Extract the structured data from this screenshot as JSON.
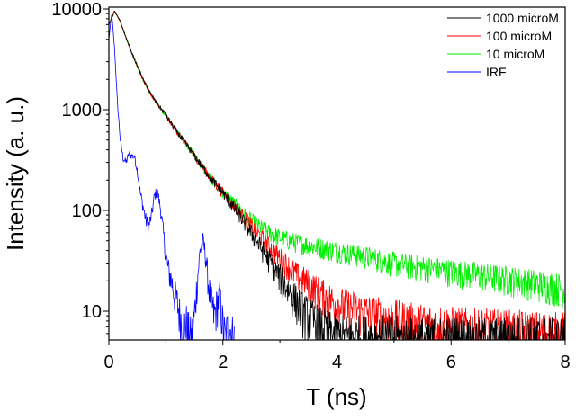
{
  "chart_data": {
    "type": "line",
    "title": "",
    "xlabel": "T (ns)",
    "ylabel": "Intensity (a. u.)",
    "xlim": [
      0,
      8
    ],
    "ylim": [
      5.2,
      10500
    ],
    "yscale": "log",
    "grid": false,
    "legend_position": "top-right",
    "xticks": [
      "0",
      "2",
      "4",
      "6",
      "8"
    ],
    "yticks": [
      "10",
      "100",
      "1000",
      "10000"
    ],
    "x": [
      0,
      0.1,
      0.2,
      0.3,
      0.4,
      0.5,
      0.6,
      0.7,
      0.8,
      0.9,
      1.0,
      1.1,
      1.2,
      1.3,
      1.4,
      1.5,
      1.6,
      1.7,
      1.8,
      1.9,
      2.0,
      2.1,
      2.2,
      2.3,
      2.4,
      2.5,
      2.6,
      2.7,
      2.8,
      2.9,
      3.0,
      3.1,
      3.2,
      3.3,
      3.4,
      3.5,
      3.6,
      3.7,
      3.8,
      3.9,
      4.0,
      4.1,
      4.2,
      4.3,
      4.4,
      4.5,
      4.6,
      4.7,
      4.8,
      4.9,
      5.0,
      5.1,
      5.2,
      5.3,
      5.4,
      5.5,
      5.6,
      5.7,
      5.8,
      5.9,
      6.0,
      6.1,
      6.2,
      6.3,
      6.4,
      6.5,
      6.6,
      6.7,
      6.8,
      6.9,
      7.0,
      7.1,
      7.2,
      7.3,
      7.4,
      7.5,
      7.6,
      7.7,
      7.8,
      7.9,
      8.0
    ],
    "series": [
      {
        "name": "1000 microM",
        "color": "#000000",
        "values": [
          7000,
          9500,
          7500,
          5200,
          3700,
          2700,
          2000,
          1550,
          1250,
          1050,
          880,
          720,
          600,
          500,
          420,
          350,
          290,
          245,
          205,
          175,
          150,
          125,
          105,
          88,
          72,
          60,
          49,
          40,
          33,
          27,
          22,
          18,
          15,
          12.5,
          10.5,
          9,
          8,
          7,
          6.5,
          6,
          5.5,
          5.5,
          5.5,
          5.5,
          5.5,
          5.5,
          5.5,
          5.5,
          5.5,
          5.5,
          5.5,
          5.2,
          5.2,
          5.2,
          5.2,
          5.2,
          5.2,
          5.2,
          5.2,
          5.2,
          5.2,
          5.2,
          5.2,
          5.2,
          5.2,
          5.2,
          5.2,
          5.2,
          5.2,
          5.2,
          5.2,
          5.2,
          5.2,
          5.2,
          5.2,
          5.2,
          5.2,
          5.2,
          5.2,
          5.2,
          5.2
        ]
      },
      {
        "name": "100 microM",
        "color": "#ff0000",
        "values": [
          7000,
          9500,
          7500,
          5200,
          3700,
          2700,
          2000,
          1550,
          1250,
          1050,
          880,
          720,
          600,
          500,
          420,
          350,
          290,
          245,
          205,
          175,
          150,
          130,
          112,
          96,
          82,
          70,
          60,
          52,
          45,
          39,
          34,
          30,
          26,
          23,
          21,
          19,
          17,
          15.5,
          14,
          13,
          12,
          11.5,
          11,
          10.6,
          10.2,
          9.8,
          9.5,
          9.2,
          8.9,
          8.6,
          8.4,
          8.2,
          8,
          7.8,
          7.6,
          7.5,
          7.4,
          7.3,
          7.2,
          7.1,
          7,
          6.9,
          6.8,
          6.8,
          6.7,
          6.6,
          6.6,
          6.5,
          6.5,
          6.4,
          6.4,
          6.3,
          6.3,
          6.2,
          6.2,
          6.1,
          6.1,
          6,
          6,
          6,
          6
        ]
      },
      {
        "name": "10 microM",
        "color": "#00ee00",
        "values": [
          7000,
          9500,
          7500,
          5200,
          3700,
          2700,
          2000,
          1550,
          1250,
          1050,
          880,
          720,
          600,
          500,
          420,
          350,
          290,
          245,
          205,
          175,
          150,
          135,
          118,
          103,
          90,
          80,
          72,
          66,
          61,
          57,
          54,
          52,
          50,
          48,
          47,
          45,
          44,
          43,
          42,
          41,
          40,
          39,
          38,
          37,
          36,
          35,
          34,
          33,
          32,
          31,
          30,
          29.5,
          29,
          28.5,
          28,
          27.5,
          27,
          26.5,
          26,
          25.5,
          25,
          24.6,
          24.2,
          23.8,
          23.4,
          23,
          22.6,
          22.2,
          21.8,
          21.4,
          21,
          20.6,
          20.2,
          19.8,
          19.4,
          19,
          18.6,
          18.2,
          17.8,
          17.4,
          17
        ]
      },
      {
        "name": "IRF",
        "color": "#0000ff",
        "x": [
          0,
          0.05,
          0.1,
          0.15,
          0.2,
          0.25,
          0.3,
          0.35,
          0.4,
          0.45,
          0.5,
          0.55,
          0.6,
          0.65,
          0.7,
          0.75,
          0.8,
          0.85,
          0.9,
          0.95,
          1.0,
          1.05,
          1.1,
          1.15,
          1.2,
          1.25,
          1.3,
          1.35,
          1.4,
          1.45,
          1.5,
          1.55,
          1.6,
          1.65,
          1.7,
          1.75,
          1.8,
          1.85,
          1.9,
          1.95,
          2.0,
          2.05,
          2.1,
          2.15,
          2.2
        ],
        "values": [
          5000,
          9000,
          4000,
          1200,
          500,
          330,
          300,
          360,
          350,
          340,
          250,
          150,
          110,
          80,
          70,
          90,
          140,
          155,
          110,
          65,
          35,
          25,
          20,
          15,
          12,
          9,
          7,
          8,
          6,
          5,
          9,
          20,
          40,
          50,
          35,
          18,
          12,
          9,
          12,
          14,
          7,
          5,
          8,
          6,
          5
        ]
      }
    ]
  }
}
